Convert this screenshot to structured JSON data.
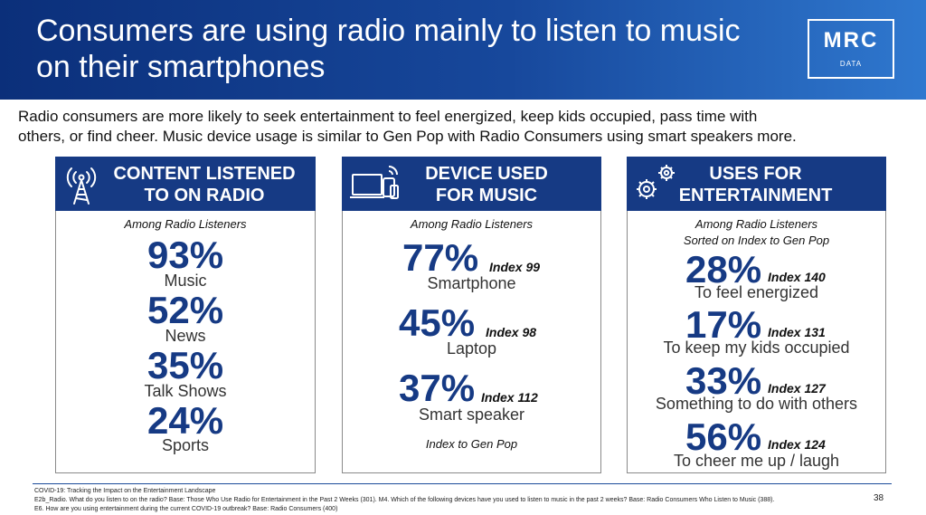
{
  "header": {
    "title_line1": "Consumers are using radio mainly to listen to music",
    "title_line2": "on their smartphones",
    "logo": {
      "name": "MRC",
      "sub": "DATA"
    }
  },
  "subtitle": {
    "line1": "Radio consumers are more likely to seek entertainment to feel energized, keep kids occupied, pass time with",
    "line2": "others, or find cheer. Music device usage is similar to Gen Pop with Radio Consumers using smart speakers more."
  },
  "panels": [
    {
      "heading_line1": "CONTENT LISTENED",
      "heading_line2": "TO ON RADIO",
      "icon": "radio-tower-icon",
      "note": "Among Radio Listeners",
      "items": [
        {
          "pct": "93%",
          "label": "Music"
        },
        {
          "pct": "52%",
          "label": "News"
        },
        {
          "pct": "35%",
          "label": "Talk Shows"
        },
        {
          "pct": "24%",
          "label": "Sports"
        }
      ]
    },
    {
      "heading_line1": "DEVICE USED",
      "heading_line2": "FOR MUSIC",
      "icon": "devices-icon",
      "note": "Among Radio Listeners",
      "items": [
        {
          "pct": "77%",
          "index": "Index 99",
          "label": "Smartphone"
        },
        {
          "pct": "45%",
          "index": "Index 98",
          "label": "Laptop"
        },
        {
          "pct": "37%",
          "index": "Index 112",
          "label": "Smart speaker"
        }
      ],
      "footnote": "Index to Gen Pop"
    },
    {
      "heading_line1": "USES FOR",
      "heading_line2": "ENTERTAINMENT",
      "icon": "gears-icon",
      "note_line1": "Among Radio Listeners",
      "note_line2": "Sorted on Index to Gen Pop",
      "items": [
        {
          "pct": "28%",
          "index": "Index 140",
          "label": "To feel energized"
        },
        {
          "pct": "17%",
          "index": "Index 131",
          "label": "To keep my kids occupied"
        },
        {
          "pct": "33%",
          "index": "Index 127",
          "label": "Something to do with others"
        },
        {
          "pct": "56%",
          "index": "Index 124",
          "label": "To cheer me up / laugh"
        }
      ]
    }
  ],
  "footer": {
    "line1": "COVID-19: Tracking the Impact on the Entertainment Landscape",
    "line2": "E2b_Radio. What do you listen to on the radio? Base: Those Who Use Radio for Entertainment in the Past 2 Weeks (301). M4. Which of the following devices have you used to listen to music in the past 2 weeks? Base: Radio Consumers Who Listen to Music (388).",
    "line3": "E6. How are you using entertainment during the current COVID-19 outbreak? Base: Radio Consumers (400)",
    "page_number": "38"
  },
  "colors": {
    "brand_navy": "#163a84",
    "header_light": "#2f78cf"
  }
}
